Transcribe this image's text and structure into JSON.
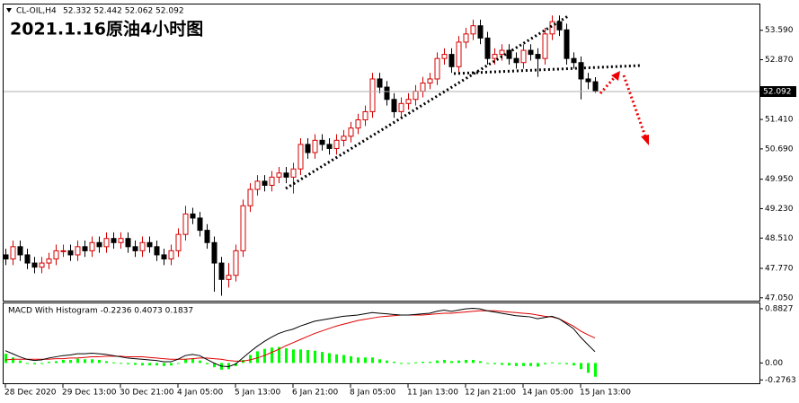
{
  "chart_data": [
    {
      "type": "candlestick",
      "symbol": "CL-OIL,H4",
      "ohlc": "52.332 52.442 52.062 52.092",
      "title": "2021.1.16原油4小时图",
      "categories": [
        "28 Dec 2020",
        null,
        null,
        null,
        null,
        null,
        null,
        null,
        "29 Dec 13:00",
        null,
        null,
        null,
        null,
        null,
        null,
        null,
        "30 Dec 21:00",
        null,
        null,
        null,
        null,
        null,
        null,
        null,
        "4 Jan 05:00",
        null,
        null,
        null,
        null,
        null,
        null,
        null,
        "5 Jan 13:00",
        null,
        null,
        null,
        null,
        null,
        null,
        null,
        "6 Jan 21:00",
        null,
        null,
        null,
        null,
        null,
        null,
        null,
        "8 Jan 05:00",
        null,
        null,
        null,
        null,
        null,
        null,
        null,
        "11 Jan 13:00",
        null,
        null,
        null,
        null,
        null,
        null,
        null,
        "12 Jan 21:00",
        null,
        null,
        null,
        null,
        null,
        null,
        null,
        "14 Jan 05:00",
        null,
        null,
        null,
        null,
        null,
        null,
        null,
        "15 Jan 13:00",
        null,
        null
      ],
      "open": [
        48.1,
        48.0,
        48.3,
        48.1,
        47.9,
        47.8,
        47.9,
        48.0,
        48.2,
        48.2,
        48.1,
        48.3,
        48.2,
        48.4,
        48.3,
        48.5,
        48.4,
        48.5,
        48.3,
        48.2,
        48.4,
        48.3,
        48.1,
        48.0,
        48.2,
        48.6,
        49.1,
        49.0,
        48.7,
        48.4,
        47.9,
        47.5,
        47.6,
        48.2,
        49.3,
        49.7,
        49.9,
        49.8,
        50.0,
        50.1,
        50.0,
        50.2,
        50.8,
        50.6,
        50.9,
        50.8,
        50.7,
        50.9,
        51.0,
        51.2,
        51.4,
        51.6,
        52.4,
        52.2,
        51.9,
        51.6,
        51.8,
        51.9,
        52.1,
        52.3,
        52.4,
        52.9,
        53.0,
        52.7,
        53.3,
        53.5,
        53.7,
        53.4,
        52.9,
        53.0,
        53.1,
        52.9,
        52.8,
        53.1,
        53.0,
        52.9,
        53.5,
        53.8,
        53.6,
        52.9,
        52.8,
        52.4,
        52.332
      ],
      "high": [
        48.25,
        48.45,
        48.45,
        48.25,
        48.05,
        48.05,
        48.15,
        48.35,
        48.35,
        48.35,
        48.45,
        48.45,
        48.55,
        48.55,
        48.65,
        48.65,
        48.65,
        48.65,
        48.45,
        48.55,
        48.55,
        48.45,
        48.25,
        48.35,
        48.75,
        49.3,
        49.25,
        49.15,
        48.85,
        48.55,
        48.05,
        47.9,
        48.35,
        49.45,
        49.85,
        50.05,
        50.05,
        50.15,
        50.25,
        50.25,
        50.35,
        50.95,
        50.95,
        51.05,
        51.05,
        50.95,
        51.05,
        51.15,
        51.35,
        51.55,
        51.75,
        52.55,
        52.55,
        52.35,
        52.05,
        51.95,
        52.05,
        52.25,
        52.45,
        52.55,
        53.05,
        53.15,
        53.15,
        53.45,
        53.65,
        53.85,
        53.85,
        53.55,
        53.15,
        53.25,
        53.25,
        53.05,
        53.25,
        53.25,
        53.15,
        53.65,
        53.95,
        53.95,
        53.75,
        53.05,
        52.95,
        52.55,
        52.442
      ],
      "low": [
        47.85,
        47.85,
        47.95,
        47.75,
        47.65,
        47.65,
        47.75,
        47.85,
        48.05,
        47.95,
        47.95,
        48.05,
        48.05,
        48.15,
        48.15,
        48.25,
        48.25,
        48.15,
        48.05,
        48.05,
        48.15,
        47.95,
        47.85,
        47.85,
        48.05,
        48.45,
        48.85,
        48.55,
        48.25,
        47.2,
        47.1,
        47.3,
        47.45,
        48.05,
        49.15,
        49.55,
        49.65,
        49.65,
        49.85,
        49.85,
        49.6,
        50.05,
        50.45,
        50.45,
        50.65,
        50.55,
        50.55,
        50.75,
        50.85,
        51.05,
        51.25,
        51.45,
        52.05,
        51.75,
        51.45,
        51.45,
        51.65,
        51.75,
        51.95,
        52.15,
        52.25,
        52.75,
        52.55,
        52.55,
        53.15,
        53.35,
        53.25,
        52.75,
        52.75,
        52.85,
        52.75,
        52.65,
        52.65,
        52.85,
        52.45,
        52.75,
        53.35,
        53.45,
        52.75,
        52.65,
        51.9,
        52.15,
        52.062
      ],
      "close": [
        48.0,
        48.3,
        48.1,
        47.9,
        47.8,
        47.9,
        48.0,
        48.2,
        48.2,
        48.1,
        48.3,
        48.2,
        48.4,
        48.3,
        48.5,
        48.4,
        48.5,
        48.3,
        48.2,
        48.4,
        48.3,
        48.1,
        48.0,
        48.2,
        48.6,
        49.1,
        49.0,
        48.7,
        48.4,
        47.9,
        47.5,
        47.6,
        48.2,
        49.3,
        49.7,
        49.9,
        49.8,
        50.0,
        50.1,
        50.0,
        50.2,
        50.8,
        50.6,
        50.9,
        50.8,
        50.7,
        50.9,
        51.0,
        51.2,
        51.4,
        51.6,
        52.4,
        52.2,
        51.9,
        51.6,
        51.8,
        51.9,
        52.1,
        52.3,
        52.4,
        52.9,
        53.0,
        52.7,
        53.3,
        53.5,
        53.7,
        53.4,
        52.9,
        53.0,
        53.1,
        52.9,
        52.8,
        53.1,
        53.0,
        52.9,
        53.5,
        53.8,
        53.6,
        52.9,
        52.8,
        52.4,
        52.332,
        52.092
      ],
      "up_color": "#d40000",
      "down_color": "#000000",
      "ylim": [
        46.98,
        54.22
      ],
      "yticks": [
        {
          "value": 47.05,
          "label": "47.050"
        },
        {
          "value": 47.77,
          "label": "47.770"
        },
        {
          "value": 48.51,
          "label": "48.510"
        },
        {
          "value": 49.23,
          "label": "49.230"
        },
        {
          "value": 49.95,
          "label": "49.950"
        },
        {
          "value": 50.69,
          "label": "50.690"
        },
        {
          "value": 51.41,
          "label": "51.410"
        },
        {
          "value": 52.87,
          "label": "52.870"
        },
        {
          "value": 53.59,
          "label": "53.590"
        }
      ]
    },
    {
      "type": "macd",
      "label": "MACD With Histogram -0.2236 0.4073 0.1837",
      "histogram": [
        0.15,
        0.09,
        0.04,
        0.0,
        -0.02,
        -0.01,
        0.02,
        0.03,
        0.05,
        0.05,
        0.07,
        0.06,
        0.06,
        0.05,
        0.03,
        0.01,
        -0.01,
        -0.02,
        -0.03,
        -0.04,
        -0.04,
        -0.04,
        -0.05,
        -0.04,
        0.0,
        0.06,
        0.07,
        0.04,
        -0.02,
        -0.07,
        -0.11,
        -0.1,
        -0.05,
        0.05,
        0.13,
        0.19,
        0.23,
        0.25,
        0.26,
        0.24,
        0.22,
        0.22,
        0.21,
        0.2,
        0.18,
        0.16,
        0.14,
        0.13,
        0.11,
        0.09,
        0.09,
        0.09,
        0.06,
        0.04,
        0.02,
        0.0,
        0.0,
        0.01,
        0.02,
        0.02,
        0.04,
        0.05,
        0.03,
        0.04,
        0.05,
        0.05,
        0.03,
        0.0,
        -0.02,
        -0.03,
        -0.04,
        -0.05,
        -0.05,
        -0.05,
        -0.06,
        -0.02,
        0.01,
        0.0,
        -0.02,
        -0.04,
        -0.1,
        -0.16,
        -0.2236
      ],
      "histogram_color": "#00ff00",
      "main": [
        0.2,
        0.15,
        0.1,
        0.06,
        0.04,
        0.05,
        0.08,
        0.1,
        0.12,
        0.13,
        0.15,
        0.15,
        0.16,
        0.15,
        0.14,
        0.12,
        0.1,
        0.08,
        0.07,
        0.06,
        0.05,
        0.04,
        0.02,
        0.02,
        0.06,
        0.12,
        0.14,
        0.12,
        0.06,
        0.0,
        -0.05,
        -0.06,
        -0.02,
        0.08,
        0.18,
        0.27,
        0.35,
        0.42,
        0.48,
        0.52,
        0.55,
        0.6,
        0.64,
        0.68,
        0.7,
        0.72,
        0.74,
        0.76,
        0.77,
        0.78,
        0.8,
        0.82,
        0.81,
        0.8,
        0.79,
        0.78,
        0.78,
        0.79,
        0.8,
        0.81,
        0.84,
        0.86,
        0.84,
        0.86,
        0.88,
        0.89,
        0.88,
        0.85,
        0.83,
        0.81,
        0.79,
        0.77,
        0.76,
        0.75,
        0.72,
        0.74,
        0.76,
        0.72,
        0.64,
        0.56,
        0.42,
        0.3,
        0.1837
      ],
      "main_color": "#000000",
      "signal": [
        0.05,
        0.06,
        0.06,
        0.06,
        0.06,
        0.06,
        0.06,
        0.07,
        0.07,
        0.08,
        0.08,
        0.09,
        0.1,
        0.1,
        0.11,
        0.11,
        0.11,
        0.1,
        0.1,
        0.1,
        0.09,
        0.08,
        0.07,
        0.06,
        0.06,
        0.06,
        0.07,
        0.08,
        0.08,
        0.07,
        0.06,
        0.04,
        0.03,
        0.03,
        0.05,
        0.08,
        0.12,
        0.17,
        0.22,
        0.28,
        0.33,
        0.38,
        0.43,
        0.48,
        0.52,
        0.56,
        0.6,
        0.63,
        0.66,
        0.69,
        0.71,
        0.73,
        0.75,
        0.76,
        0.77,
        0.78,
        0.78,
        0.78,
        0.78,
        0.79,
        0.8,
        0.81,
        0.81,
        0.82,
        0.83,
        0.84,
        0.85,
        0.85,
        0.85,
        0.84,
        0.83,
        0.82,
        0.81,
        0.8,
        0.78,
        0.76,
        0.75,
        0.72,
        0.66,
        0.6,
        0.52,
        0.46,
        0.4073
      ],
      "signal_color": "#e00000",
      "ylim": [
        -0.33,
        0.97
      ],
      "yticks": [
        0.8827,
        {
          "value": 0,
          "label": "0.00"
        },
        -0.2763
      ]
    }
  ]
}
